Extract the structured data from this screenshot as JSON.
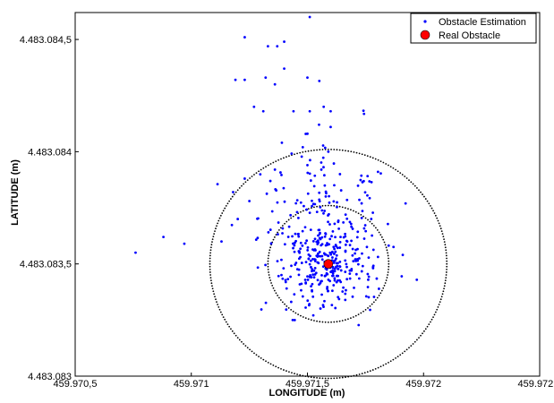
{
  "chart_data": {
    "type": "scatter",
    "title": "",
    "xlabel": "LONGITUDE (m)",
    "ylabel": "LATITUDE (m)",
    "xlim": [
      459.9705,
      459.9725
    ],
    "ylim": [
      4483.083,
      4483.08462
    ],
    "grid": false,
    "legend_position": "top-right",
    "x_ticks": [
      {
        "value": 459.9705,
        "label": "459.970,5"
      },
      {
        "value": 459.971,
        "label": "459.971"
      },
      {
        "value": 459.9715,
        "label": "459.971,5"
      },
      {
        "value": 459.972,
        "label": "459.972"
      },
      {
        "value": 459.9725,
        "label": "459.972,5"
      }
    ],
    "y_ticks": [
      {
        "value": 4483.083,
        "label": "4.483.083"
      },
      {
        "value": 4483.0835,
        "label": "4.483.083,5"
      },
      {
        "value": 4483.084,
        "label": "4.483.084"
      },
      {
        "value": 4483.0845,
        "label": "4.483.084,5"
      }
    ],
    "series": [
      {
        "name": "Obstacle Estimation",
        "marker": "dot",
        "color": "#0000ff",
        "cloud": {
          "n": 420,
          "cx": 459.97158,
          "cy": 4483.08363,
          "sx": 0.00014,
          "sy": 0.00018,
          "tail_points": [
            [
              459.97123,
              4483.08451
            ],
            [
              459.97133,
              4483.08447
            ],
            [
              459.97137,
              4483.08447
            ],
            [
              459.9714,
              4483.08449
            ],
            [
              459.97151,
              4483.0846
            ],
            [
              459.97158,
              4483.08465
            ],
            [
              459.97119,
              4483.08432
            ],
            [
              459.97123,
              4483.08432
            ],
            [
              459.97132,
              4483.08433
            ],
            [
              459.97136,
              4483.0843
            ],
            [
              459.9714,
              4483.08437
            ],
            [
              459.9715,
              4483.08433
            ],
            [
              459.97127,
              4483.0842
            ],
            [
              459.97131,
              4483.08418
            ],
            [
              459.97144,
              4483.08418
            ],
            [
              459.97151,
              4483.08418
            ],
            [
              459.97157,
              4483.0842
            ],
            [
              459.9716,
              4483.08418
            ],
            [
              459.97155,
              4483.08412
            ],
            [
              459.9716,
              4483.08411
            ],
            [
              459.9715,
              4483.08408
            ],
            [
              459.97139,
              4483.08404
            ],
            [
              459.97148,
              4483.08402
            ],
            [
              459.97159,
              4483.084
            ],
            [
              459.97123,
              4483.08388
            ],
            [
              459.97136,
              4483.08392
            ],
            [
              459.9715,
              4483.08394
            ],
            [
              459.97156,
              4483.08392
            ],
            [
              459.97164,
              4483.0839
            ],
            [
              459.97097,
              4483.08359
            ],
            [
              459.97088,
              4483.08362
            ],
            [
              459.97076,
              4483.08355
            ],
            [
              459.97113,
              4483.0836
            ],
            [
              459.9712,
              4483.0837
            ],
            [
              459.97118,
              4483.08382
            ],
            [
              459.97125,
              4483.08378
            ]
          ]
        }
      },
      {
        "name": "Real Obstacle",
        "marker": "circle",
        "color": "#ff0000",
        "points": [
          [
            459.97159,
            4483.0835
          ]
        ]
      }
    ],
    "circles": [
      {
        "cx": 459.97159,
        "cy": 4483.0835,
        "r": 0.00051,
        "style": "dotted"
      },
      {
        "cx": 459.97159,
        "cy": 4483.0835,
        "r": 0.00026,
        "style": "dotted"
      }
    ]
  }
}
